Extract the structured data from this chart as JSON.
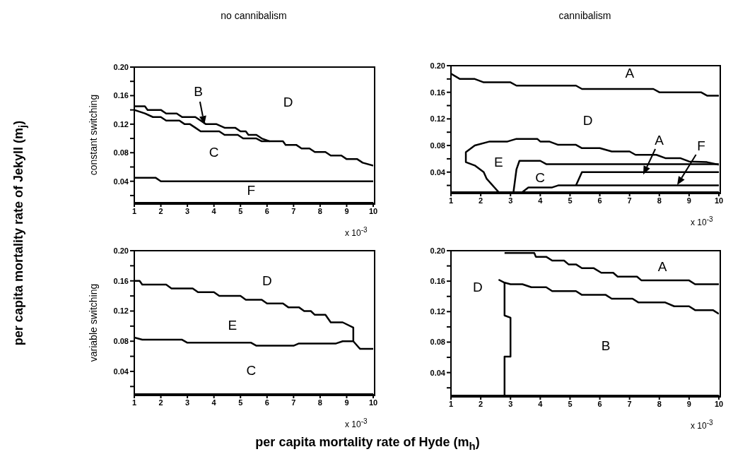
{
  "chart_data": [
    {
      "type": "line",
      "title": "no cannibalism",
      "ylabel": "constant switching",
      "xlim": [
        1,
        10
      ],
      "xticks": [
        1,
        2,
        3,
        4,
        5,
        6,
        7,
        8,
        9,
        10
      ],
      "ylim": [
        0.01,
        0.2
      ],
      "yticks": [
        {
          "value": 0.02,
          "label": null
        },
        0.04,
        {
          "value": 0.06,
          "label": null
        },
        0.08,
        {
          "value": 0.1,
          "label": null
        },
        0.12,
        {
          "value": 0.14,
          "label": null
        },
        0.16,
        {
          "value": 0.18,
          "label": null
        },
        {
          "value": 0.2,
          "label": "0.20"
        }
      ],
      "series": [
        {
          "color": "#000000",
          "x": [
            1,
            1.4,
            1.5,
            2.0,
            2.2,
            2.6,
            2.8,
            3.3,
            3.5,
            3.7,
            4.1,
            4.4,
            4.8,
            5.0,
            5.2,
            5.3,
            5.6,
            5.8,
            6.1,
            6.6,
            6.7,
            7.1,
            7.3,
            7.6,
            7.8,
            8.2,
            8.4,
            8.8,
            9.0,
            9.4,
            9.6,
            10
          ],
          "values": [
            0.145,
            0.145,
            0.14,
            0.14,
            0.135,
            0.135,
            0.13,
            0.13,
            0.125,
            0.12,
            0.12,
            0.115,
            0.115,
            0.11,
            0.11,
            0.105,
            0.105,
            0.1,
            0.096,
            0.096,
            0.091,
            0.091,
            0.086,
            0.086,
            0.081,
            0.081,
            0.076,
            0.076,
            0.071,
            0.071,
            0.066,
            0.062
          ]
        },
        {
          "color": "#000000",
          "x": [
            1,
            1.4,
            1.7,
            2.0,
            2.2,
            2.7,
            2.9,
            3.1,
            3.3,
            3.5,
            4.2,
            4.4,
            4.9,
            5.1,
            5.6,
            5.8,
            6.1
          ],
          "values": [
            0.14,
            0.135,
            0.13,
            0.13,
            0.125,
            0.125,
            0.12,
            0.12,
            0.115,
            0.11,
            0.11,
            0.105,
            0.105,
            0.1,
            0.1,
            0.096,
            0.096
          ]
        },
        {
          "color": "#000000",
          "x": [
            1,
            1.8,
            2.0,
            10
          ],
          "values": [
            0.045,
            0.045,
            0.04,
            0.04
          ]
        }
      ],
      "annotations": [
        "x 10$^{-3}$",
        "per capita mortality rate of Jekyll (m$_{j}$)",
        {
          "text": "B",
          "x": 3.65,
          "y": 0.12
        },
        "D",
        "C",
        "F"
      ]
    },
    {
      "type": "line",
      "title": "cannibalism",
      "xlim": [
        1,
        10
      ],
      "xticks": [
        1,
        2,
        3,
        4,
        5,
        6,
        7,
        8,
        9,
        10
      ],
      "ylim": [
        0.01,
        0.2
      ],
      "yticks": [
        {
          "value": 0.02,
          "label": null
        },
        0.04,
        {
          "value": 0.06,
          "label": null
        },
        0.08,
        {
          "value": 0.1,
          "label": null
        },
        0.12,
        {
          "value": 0.14,
          "label": null
        },
        0.16,
        {
          "value": 0.18,
          "label": null
        },
        {
          "value": 0.2,
          "label": "0.20"
        }
      ],
      "series": [
        {
          "color": "#000000",
          "x": [
            1,
            1.3,
            1.8,
            2.1,
            3.0,
            3.2,
            5.2,
            5.4,
            7.8,
            8.0,
            9.4,
            9.6,
            10
          ],
          "values": [
            0.188,
            0.18,
            0.18,
            0.175,
            0.175,
            0.17,
            0.17,
            0.165,
            0.165,
            0.16,
            0.16,
            0.155,
            0.155
          ]
        },
        {
          "color": "#000000",
          "x": [
            2.6,
            2.2,
            2.1,
            1.8,
            1.5,
            1.5,
            1.8,
            2.3,
            2.9,
            3.2,
            3.9,
            4.0,
            4.3,
            4.6,
            5.2,
            5.4,
            6.0,
            6.4,
            7.0,
            7.2,
            7.9,
            8.2,
            8.7,
            9.0,
            9.6,
            10
          ],
          "values": [
            0.01,
            0.03,
            0.04,
            0.05,
            0.055,
            0.07,
            0.08,
            0.086,
            0.086,
            0.09,
            0.09,
            0.086,
            0.086,
            0.081,
            0.081,
            0.076,
            0.076,
            0.071,
            0.071,
            0.066,
            0.066,
            0.061,
            0.061,
            0.056,
            0.055,
            0.051
          ]
        },
        {
          "color": "#000000",
          "x": [
            3.1,
            3.2,
            3.3,
            4.0,
            4.2,
            10
          ],
          "values": [
            0.01,
            0.044,
            0.057,
            0.057,
            0.052,
            0.052
          ]
        },
        {
          "color": "#000000",
          "x": [
            3.4,
            3.6,
            4.4,
            4.6,
            5.2,
            10
          ],
          "values": [
            0.01,
            0.017,
            0.017,
            0.02,
            0.02,
            0.02
          ]
        },
        {
          "color": "#000000",
          "x": [
            5.2,
            5.4,
            10
          ],
          "values": [
            0.02,
            0.04,
            0.04
          ]
        }
      ],
      "annotations": [
        "x 10$^{-3}$",
        "A",
        "D",
        "E",
        "C",
        {
          "text": "A",
          "x": 7.45,
          "y": 0.036
        },
        {
          "text": "F",
          "x": 8.6,
          "y": 0.021
        }
      ]
    },
    {
      "type": "line",
      "ylabel": "variable switching",
      "xlim": [
        1,
        10
      ],
      "xticks": [
        1,
        2,
        3,
        4,
        5,
        6,
        7,
        8,
        9,
        10
      ],
      "ylim": [
        0.01,
        0.2
      ],
      "yticks": [
        {
          "value": 0.02,
          "label": null
        },
        0.04,
        {
          "value": 0.06,
          "label": null
        },
        0.08,
        {
          "value": 0.1,
          "label": null
        },
        0.12,
        {
          "value": 0.14,
          "label": null
        },
        0.16,
        {
          "value": 0.18,
          "label": null
        },
        {
          "value": 0.2,
          "label": "0.20"
        }
      ],
      "series": [
        {
          "color": "#000000",
          "x": [
            1,
            1.2,
            1.3,
            2.2,
            2.4,
            3.2,
            3.4,
            4.0,
            4.2,
            5.0,
            5.2,
            5.8,
            6.0,
            6.6,
            6.8,
            7.2,
            7.4,
            7.65,
            7.8,
            8.2,
            8.4,
            8.85,
            9.25,
            9.25
          ],
          "values": [
            0.16,
            0.16,
            0.155,
            0.155,
            0.15,
            0.15,
            0.145,
            0.145,
            0.14,
            0.14,
            0.135,
            0.135,
            0.13,
            0.13,
            0.125,
            0.125,
            0.12,
            0.12,
            0.115,
            0.115,
            0.105,
            0.105,
            0.098,
            0.08
          ]
        },
        {
          "color": "#000000",
          "x": [
            1,
            1.3,
            2.8,
            3.0,
            5.4,
            5.6,
            7.0,
            7.2,
            8.6,
            8.85,
            9.25,
            9.5,
            10
          ],
          "values": [
            0.085,
            0.082,
            0.082,
            0.078,
            0.078,
            0.074,
            0.074,
            0.077,
            0.077,
            0.08,
            0.08,
            0.07,
            0.07
          ]
        }
      ],
      "annotations": [
        "x 10$^{-3}$",
        "D",
        "E",
        "C"
      ]
    },
    {
      "type": "line",
      "xlim": [
        1,
        10
      ],
      "xticks": [
        1,
        2,
        3,
        4,
        5,
        6,
        7,
        8,
        9,
        10
      ],
      "ylim": [
        0.01,
        0.2
      ],
      "yticks": [
        {
          "value": 0.02,
          "label": null
        },
        0.04,
        {
          "value": 0.06,
          "label": null
        },
        0.08,
        {
          "value": 0.1,
          "label": null
        },
        0.12,
        {
          "value": 0.14,
          "label": null
        },
        0.16,
        {
          "value": 0.18,
          "label": null
        },
        {
          "value": 0.2,
          "label": "0.20"
        }
      ],
      "series": [
        {
          "color": "#000000",
          "x": [
            2.8,
            3.8,
            3.85,
            4.2,
            4.4,
            4.8,
            4.95,
            5.2,
            5.4,
            5.8,
            6.05,
            6.45,
            6.6,
            7.25,
            7.4,
            9.0,
            9.2,
            10
          ],
          "values": [
            0.197,
            0.197,
            0.192,
            0.192,
            0.187,
            0.187,
            0.182,
            0.182,
            0.177,
            0.177,
            0.171,
            0.171,
            0.166,
            0.166,
            0.161,
            0.161,
            0.156,
            0.156
          ]
        },
        {
          "color": "#000000",
          "x": [
            2.6,
            2.8,
            3.0,
            3.4,
            3.7,
            4.2,
            4.4,
            5.2,
            5.4,
            6.2,
            6.4,
            7.1,
            7.3,
            8.2,
            8.5,
            9.0,
            9.2,
            9.8,
            10
          ],
          "values": [
            0.162,
            0.158,
            0.156,
            0.156,
            0.152,
            0.152,
            0.147,
            0.147,
            0.142,
            0.142,
            0.137,
            0.137,
            0.132,
            0.132,
            0.127,
            0.127,
            0.122,
            0.122,
            0.117
          ]
        },
        {
          "color": "#000000",
          "x": [
            2.8,
            2.8,
            3.0,
            3.0,
            2.8,
            2.8
          ],
          "values": [
            0.01,
            0.061,
            0.061,
            0.112,
            0.115,
            0.158
          ]
        }
      ],
      "annotations": [
        "x 10$^{-3}$",
        "per capita mortality rate of Hyde (m$_{h}$)",
        "A",
        "D",
        "B"
      ]
    }
  ]
}
